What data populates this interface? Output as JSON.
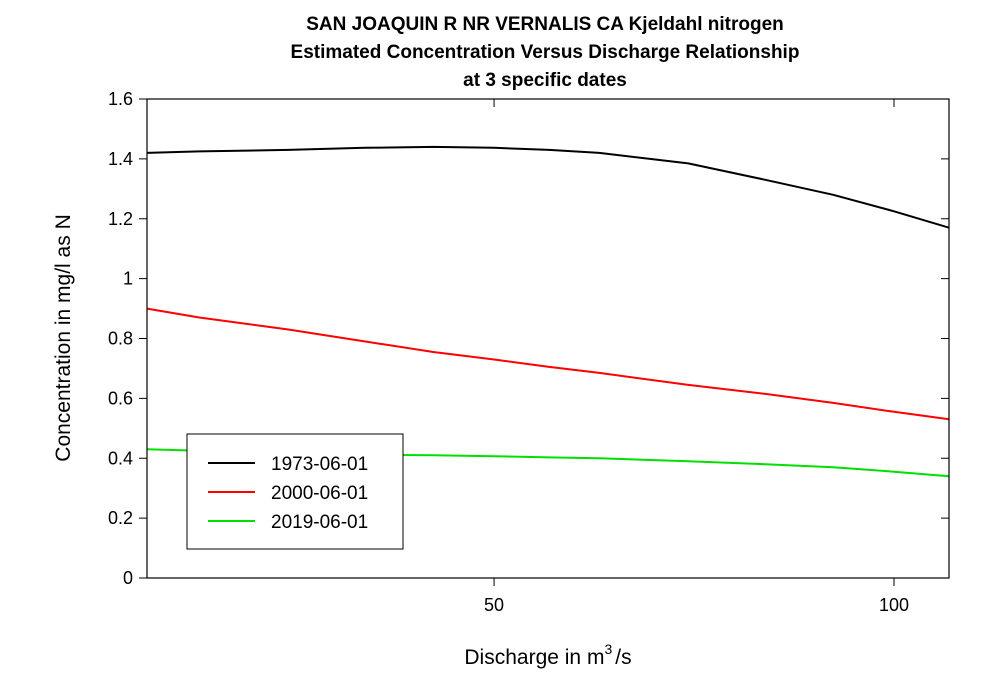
{
  "chart_data": {
    "type": "line",
    "title": "SAN JOAQUIN R NR VERNALIS CA    Kjeldahl nitrogen",
    "subtitle": "Estimated Concentration Versus Discharge Relationship",
    "subtitle2": "at 3 specific dates",
    "xlabel": "Discharge in m",
    "xlabel_sup": "3",
    "xlabel_suffix": "/s",
    "ylabel": "Concentration in mg/l as N",
    "xscale": "log",
    "xlim": [
      27.4,
      110
    ],
    "ylim": [
      0,
      1.6
    ],
    "xticks": [
      50,
      100
    ],
    "yticks": [
      0,
      0.2,
      0.4,
      0.6,
      0.8,
      1,
      1.2,
      1.4,
      1.6
    ],
    "grid": false,
    "legend_position": "bottom-left",
    "series": [
      {
        "name": "1973-06-01",
        "color": "#000000",
        "x": [
          27.4,
          30,
          35,
          40,
          45,
          50,
          55,
          60,
          70,
          80,
          90,
          100,
          110
        ],
        "y": [
          1.42,
          1.425,
          1.43,
          1.437,
          1.44,
          1.437,
          1.43,
          1.42,
          1.385,
          1.33,
          1.28,
          1.225,
          1.17
        ]
      },
      {
        "name": "2000-06-01",
        "color": "#ff0000",
        "x": [
          27.4,
          30,
          35,
          40,
          45,
          50,
          55,
          60,
          70,
          80,
          90,
          100,
          110
        ],
        "y": [
          0.9,
          0.87,
          0.83,
          0.79,
          0.755,
          0.73,
          0.705,
          0.685,
          0.645,
          0.615,
          0.585,
          0.555,
          0.53
        ]
      },
      {
        "name": "2019-06-01",
        "color": "#00e000",
        "x": [
          27.4,
          30,
          35,
          40,
          45,
          50,
          55,
          60,
          70,
          80,
          90,
          100,
          110
        ],
        "y": [
          0.43,
          0.425,
          0.418,
          0.412,
          0.41,
          0.407,
          0.403,
          0.4,
          0.39,
          0.38,
          0.37,
          0.355,
          0.34
        ]
      }
    ]
  }
}
